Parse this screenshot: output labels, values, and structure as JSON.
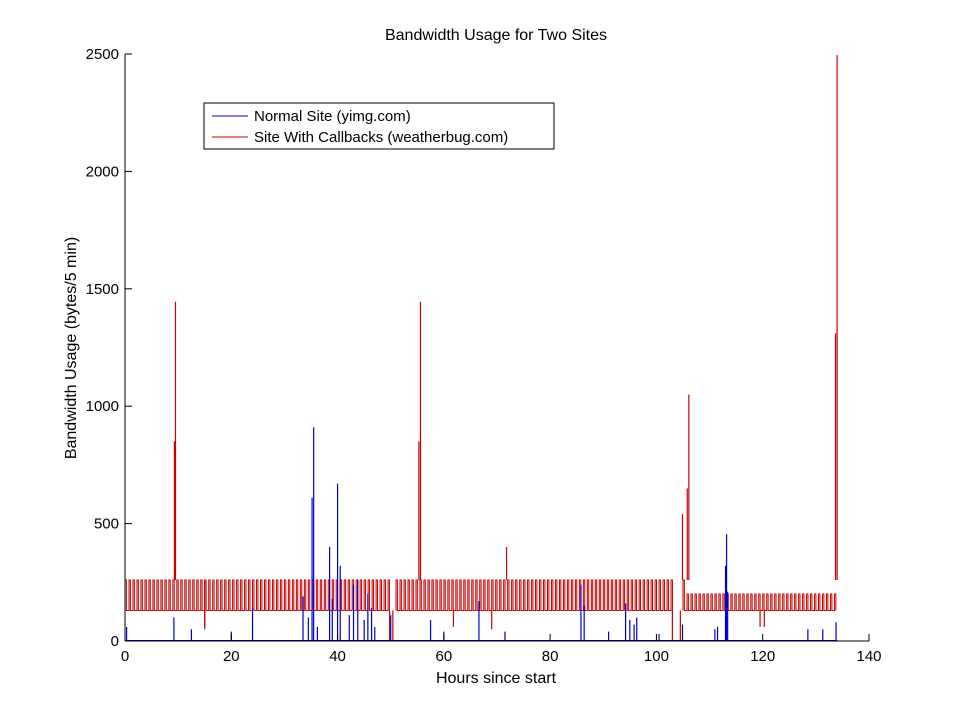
{
  "chart_data": {
    "type": "line",
    "title": "Bandwidth Usage for Two Sites",
    "xlabel": "Hours since start",
    "ylabel": "Bandwidth Usage (bytes/5 min)",
    "xlim": [
      0,
      140
    ],
    "ylim": [
      0,
      2500
    ],
    "xticks": [
      0,
      20,
      40,
      60,
      80,
      100,
      120,
      140
    ],
    "yticks": [
      0,
      500,
      1000,
      1500,
      2000,
      2500
    ],
    "grid": false,
    "legend_position": "top-left",
    "series": [
      {
        "name": "Normal Site (yimg.com)",
        "color": "#0000cc",
        "baseline": 0,
        "spikes": [
          [
            0.3,
            60
          ],
          [
            9.2,
            100
          ],
          [
            12.5,
            50
          ],
          [
            20,
            40
          ],
          [
            24,
            140
          ],
          [
            33.5,
            190
          ],
          [
            34.5,
            100
          ],
          [
            35.2,
            610
          ],
          [
            35.5,
            910
          ],
          [
            36.2,
            60
          ],
          [
            38.5,
            400
          ],
          [
            39.0,
            180
          ],
          [
            40.0,
            670
          ],
          [
            40.5,
            320
          ],
          [
            42.2,
            110
          ],
          [
            43.0,
            240
          ],
          [
            43.8,
            260
          ],
          [
            45.0,
            90
          ],
          [
            45.7,
            200
          ],
          [
            46.4,
            140
          ],
          [
            47.0,
            60
          ],
          [
            50.0,
            110
          ],
          [
            57.5,
            90
          ],
          [
            60.0,
            40
          ],
          [
            66.6,
            170
          ],
          [
            71.5,
            40
          ],
          [
            85.8,
            240
          ],
          [
            86.4,
            150
          ],
          [
            91.0,
            40
          ],
          [
            94.2,
            160
          ],
          [
            95.0,
            90
          ],
          [
            95.8,
            70
          ],
          [
            96.3,
            100
          ],
          [
            100.5,
            30
          ],
          [
            104.9,
            70
          ],
          [
            111.0,
            50
          ],
          [
            111.5,
            60
          ],
          [
            113.0,
            320
          ],
          [
            113.2,
            455
          ],
          [
            113.4,
            210
          ],
          [
            128.5,
            50
          ],
          [
            131.3,
            50
          ],
          [
            133.8,
            80
          ]
        ]
      },
      {
        "name": "Site With Callbacks (weatherbug.com)",
        "color": "#cc0000",
        "base_low": 130,
        "base_high": 260,
        "spikes": [
          [
            9.3,
            850
          ],
          [
            9.5,
            1445
          ],
          [
            15.0,
            60
          ],
          [
            55.6,
            1445
          ],
          [
            55.3,
            850
          ],
          [
            71.8,
            400
          ],
          [
            104.9,
            540
          ],
          [
            105.8,
            650
          ],
          [
            106.1,
            1050
          ],
          [
            133.7,
            1310
          ],
          [
            134.0,
            2495
          ]
        ],
        "dips": [
          [
            15.0,
            50
          ],
          [
            49.8,
            0
          ],
          [
            50.4,
            0
          ],
          [
            61.8,
            60
          ],
          [
            69.0,
            50
          ],
          [
            103.0,
            0
          ],
          [
            104.5,
            0
          ],
          [
            119.5,
            60
          ],
          [
            120.3,
            60
          ]
        ]
      }
    ]
  }
}
